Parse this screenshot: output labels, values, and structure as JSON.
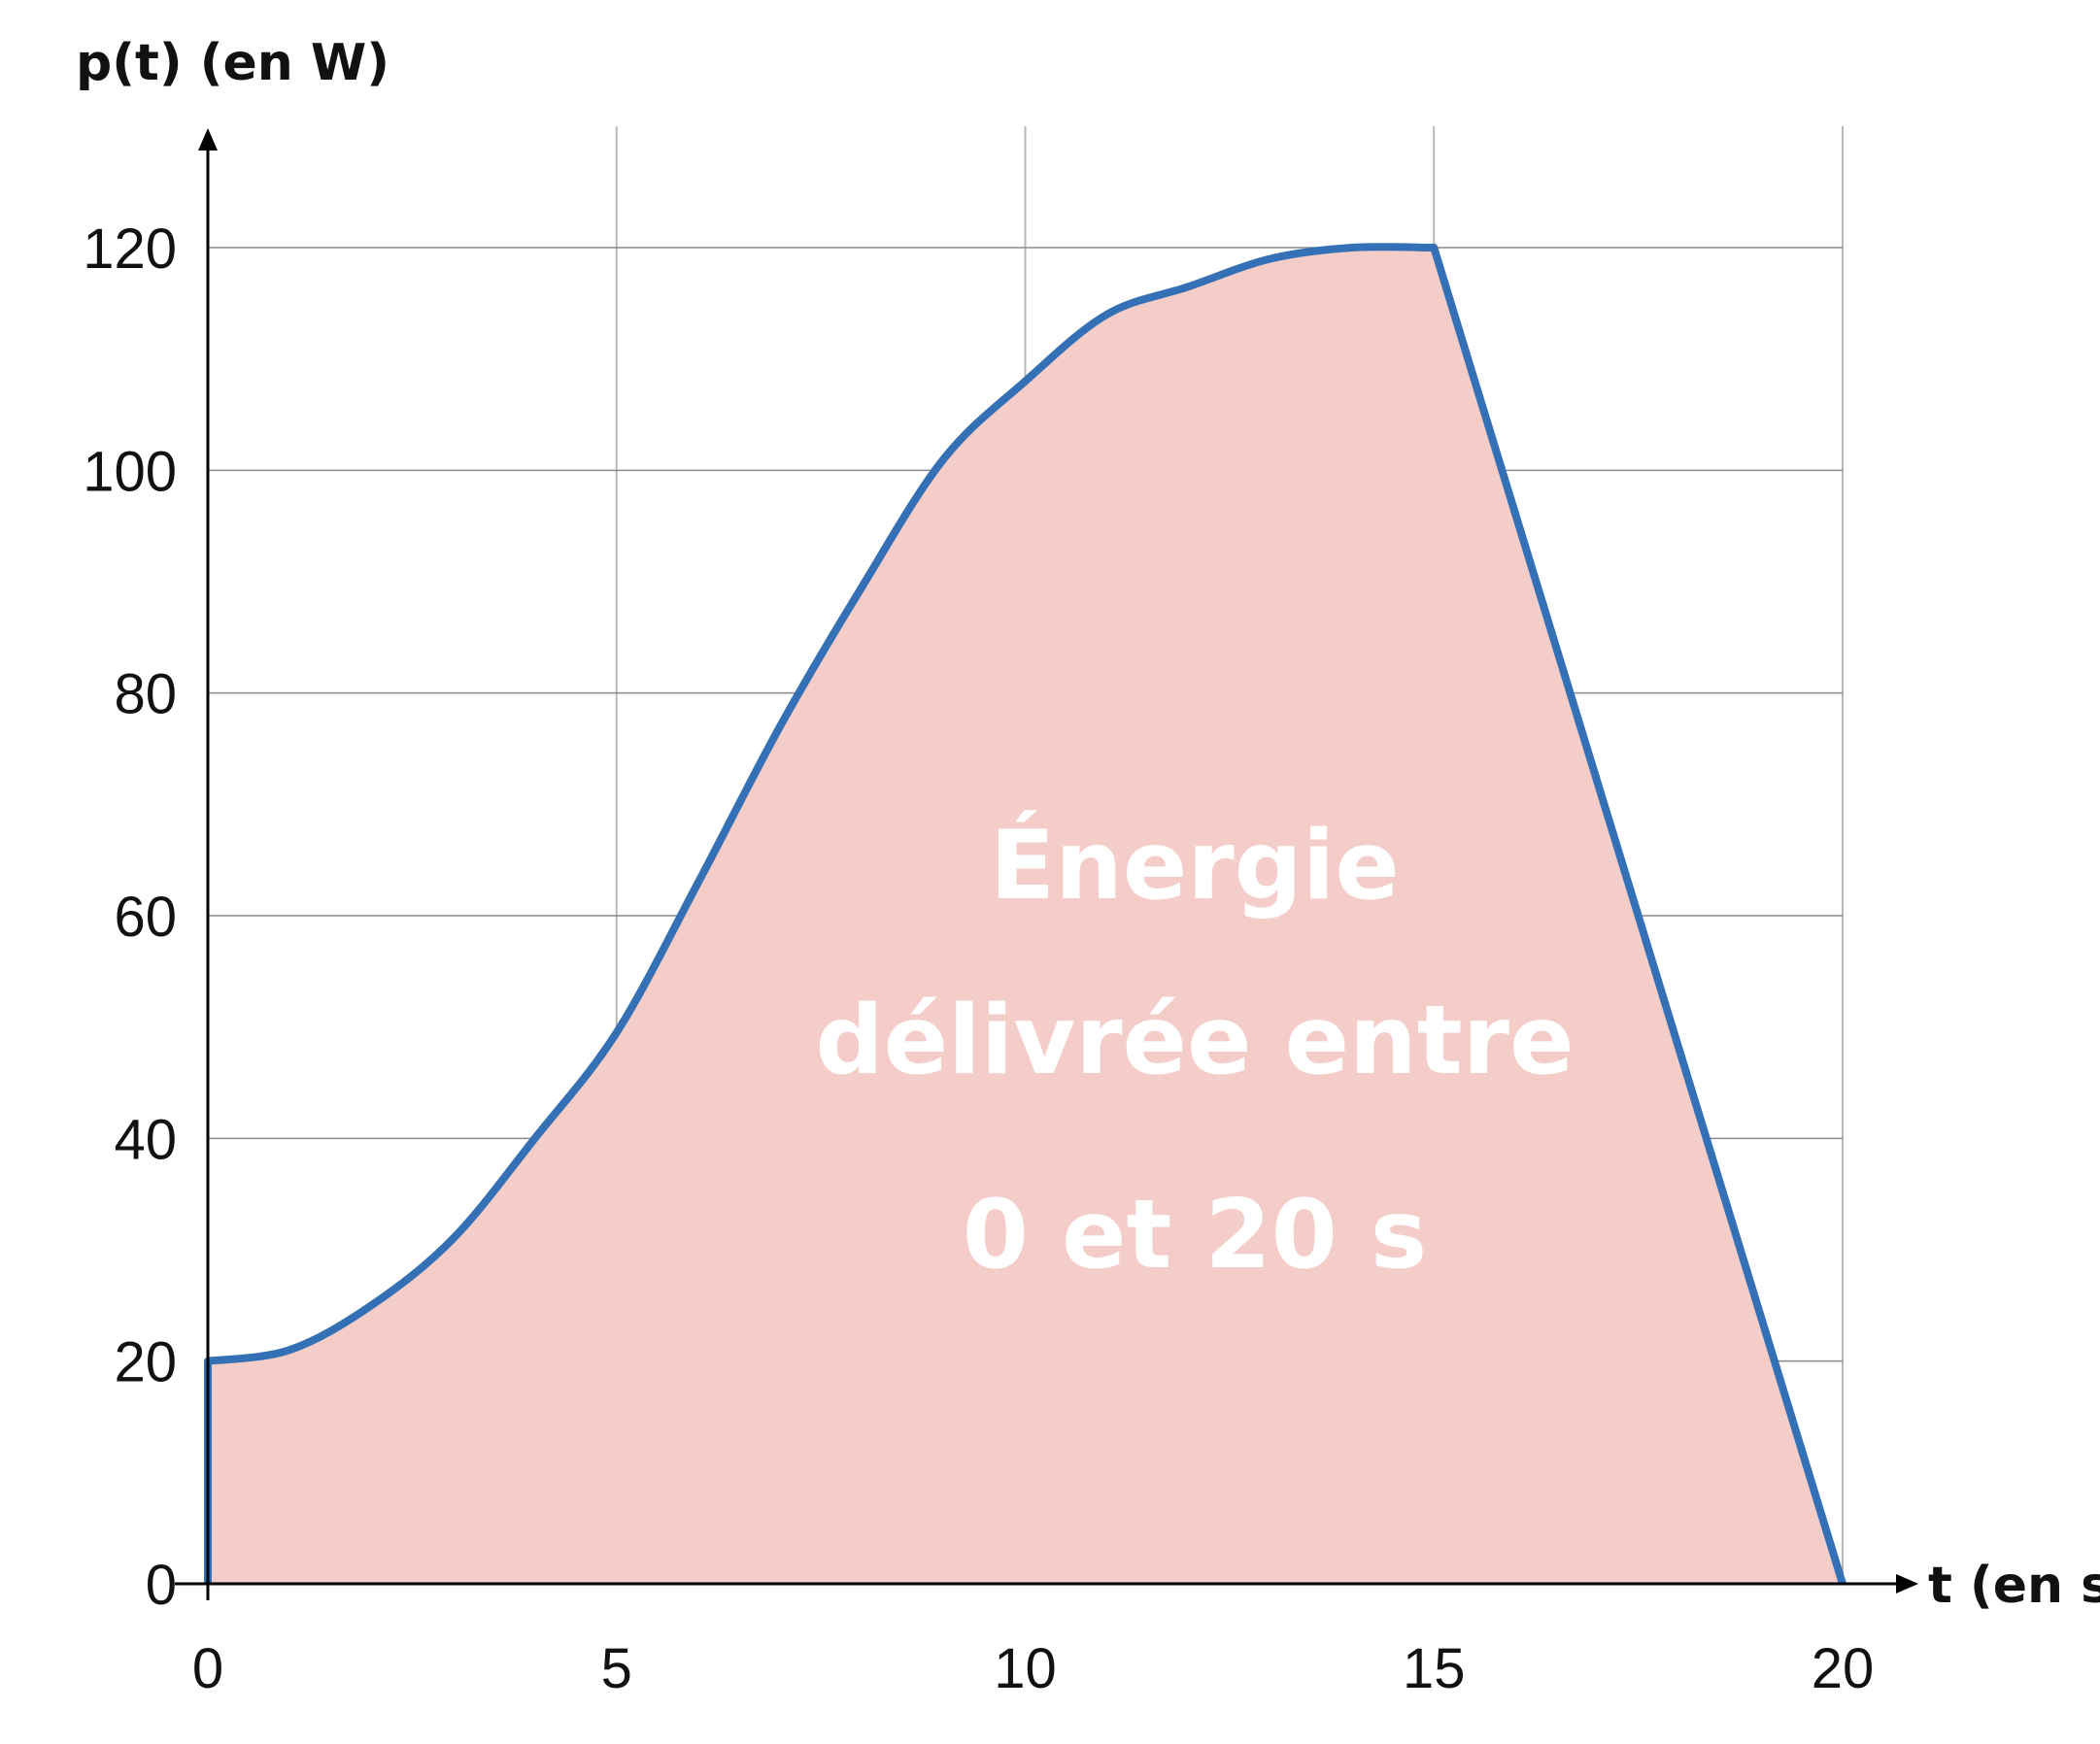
{
  "chart_data": {
    "type": "area",
    "ylabel": "p(t) (en W)",
    "xlabel": "t (en s)",
    "x_ticks": [
      0,
      5,
      10,
      15,
      20
    ],
    "y_ticks": [
      0,
      20,
      40,
      60,
      80,
      100,
      120
    ],
    "xlim": [
      0,
      20
    ],
    "ylim": [
      0,
      130
    ],
    "grid": true,
    "fill_color": "#f5cdc8",
    "line_color": "#3470b5",
    "series": [
      {
        "x": [
          0,
          0,
          1,
          2,
          3,
          4,
          5,
          6,
          7,
          8,
          9,
          10,
          11,
          12,
          13,
          14,
          15,
          20
        ],
        "values": [
          0,
          20,
          21,
          25,
          31,
          40,
          49.5,
          63,
          77,
          89.5,
          101,
          108,
          114,
          116.5,
          119,
          120,
          120,
          0
        ]
      }
    ],
    "annotation_lines": [
      "Énergie",
      "délivrée entre",
      "0 et 20 s"
    ]
  }
}
